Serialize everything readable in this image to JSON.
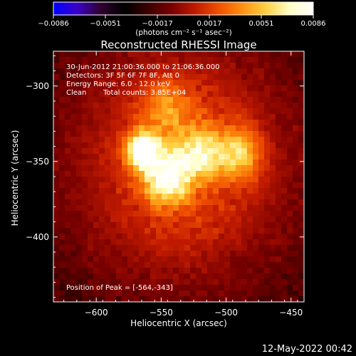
{
  "colorbar": {
    "tick_labels": [
      "−0.0086",
      "−0.0051",
      "−0.0017",
      "0.0017",
      "0.0051",
      "0.0086"
    ],
    "unit_label": "(photons cm⁻² s⁻¹ asec⁻²)",
    "range": [
      -0.0086,
      0.0086
    ],
    "colors": [
      "#0000ff",
      "#3a00c8",
      "#300030",
      "#000000",
      "#3a0000",
      "#7a0000",
      "#c01a00",
      "#f05000",
      "#ff9010",
      "#ffd040",
      "#ffffc8",
      "#ffffff"
    ]
  },
  "chart_data": {
    "type": "heatmap",
    "title": "Reconstructed RHESSI Image",
    "xlabel": "Heliocentric X (arcsec)",
    "ylabel": "Heliocentric Y (arcsec)",
    "xlim": [
      -633,
      -440
    ],
    "ylim": [
      -443,
      -277
    ],
    "x_ticks": [
      -600,
      -550,
      -500,
      -450
    ],
    "y_ticks": [
      -300,
      -350,
      -400
    ],
    "x_tick_labels": [
      "−600",
      "−550",
      "−500",
      "−450"
    ],
    "y_tick_labels": [
      "−300",
      "−350",
      "−400"
    ],
    "sources": [
      {
        "x": -564,
        "y": -343,
        "peak": 0.0086
      },
      {
        "x": -545,
        "y": -361,
        "peak": 0.0068
      },
      {
        "x": -520,
        "y": -344,
        "peak": 0.0051
      },
      {
        "x": -490,
        "y": -345,
        "peak": 0.0048
      },
      {
        "x": -545,
        "y": -315,
        "peak": 0.003
      }
    ],
    "background_min": -0.003
  },
  "annotations": {
    "time_range": "30-Jun-2012 21:00:36.000 to 21:06:36.000",
    "detectors": "Detectors: 3F 5F 6F 7F 8F, Att 0",
    "energy": "Energy Range: 6.0 - 12.0 keV",
    "clean": "Clean",
    "total_counts": "Total counts: 3.85E+04",
    "peak_position": "Position of Peak = [-564,-343]"
  },
  "footer_date": "12-May-2022 00:42"
}
